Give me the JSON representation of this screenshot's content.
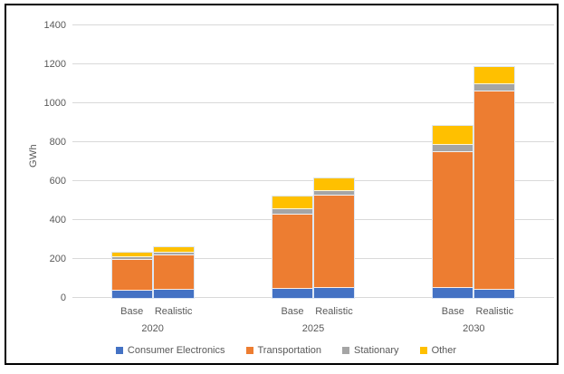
{
  "chart_data": {
    "type": "bar",
    "stacked": true,
    "title": "",
    "xlabel": "",
    "ylabel": "GWh",
    "ylim": [
      0,
      1400
    ],
    "yticks": [
      0,
      200,
      400,
      600,
      800,
      1000,
      1200,
      1400
    ],
    "grid": true,
    "legend_position": "bottom",
    "series": [
      {
        "name": "Consumer Electronics",
        "color": "#4472C4"
      },
      {
        "name": "Transportation",
        "color": "#ED7D31"
      },
      {
        "name": "Stationary",
        "color": "#A5A5A5"
      },
      {
        "name": "Other",
        "color": "#FFC000"
      }
    ],
    "groups": [
      {
        "label": "2020",
        "bars": [
          {
            "label": "Base",
            "values": [
              35,
              160,
              15,
              25
            ],
            "total": 235
          },
          {
            "label": "Realistic",
            "values": [
              40,
              180,
              15,
              25
            ],
            "total": 260
          }
        ]
      },
      {
        "label": "2025",
        "bars": [
          {
            "label": "Base",
            "values": [
              45,
              385,
              25,
              65
            ],
            "total": 520
          },
          {
            "label": "Realistic",
            "values": [
              50,
              475,
              25,
              65
            ],
            "total": 615
          }
        ]
      },
      {
        "label": "2030",
        "bars": [
          {
            "label": "Base",
            "values": [
              50,
              700,
              35,
              100
            ],
            "total": 885
          },
          {
            "label": "Realistic",
            "values": [
              40,
              1020,
              40,
              85
            ],
            "total": 1185
          }
        ]
      }
    ],
    "colors": {
      "gridline": "#d9d9d9",
      "axis_text": "#595959",
      "frame_border": "#000000",
      "background": "#ffffff"
    }
  }
}
